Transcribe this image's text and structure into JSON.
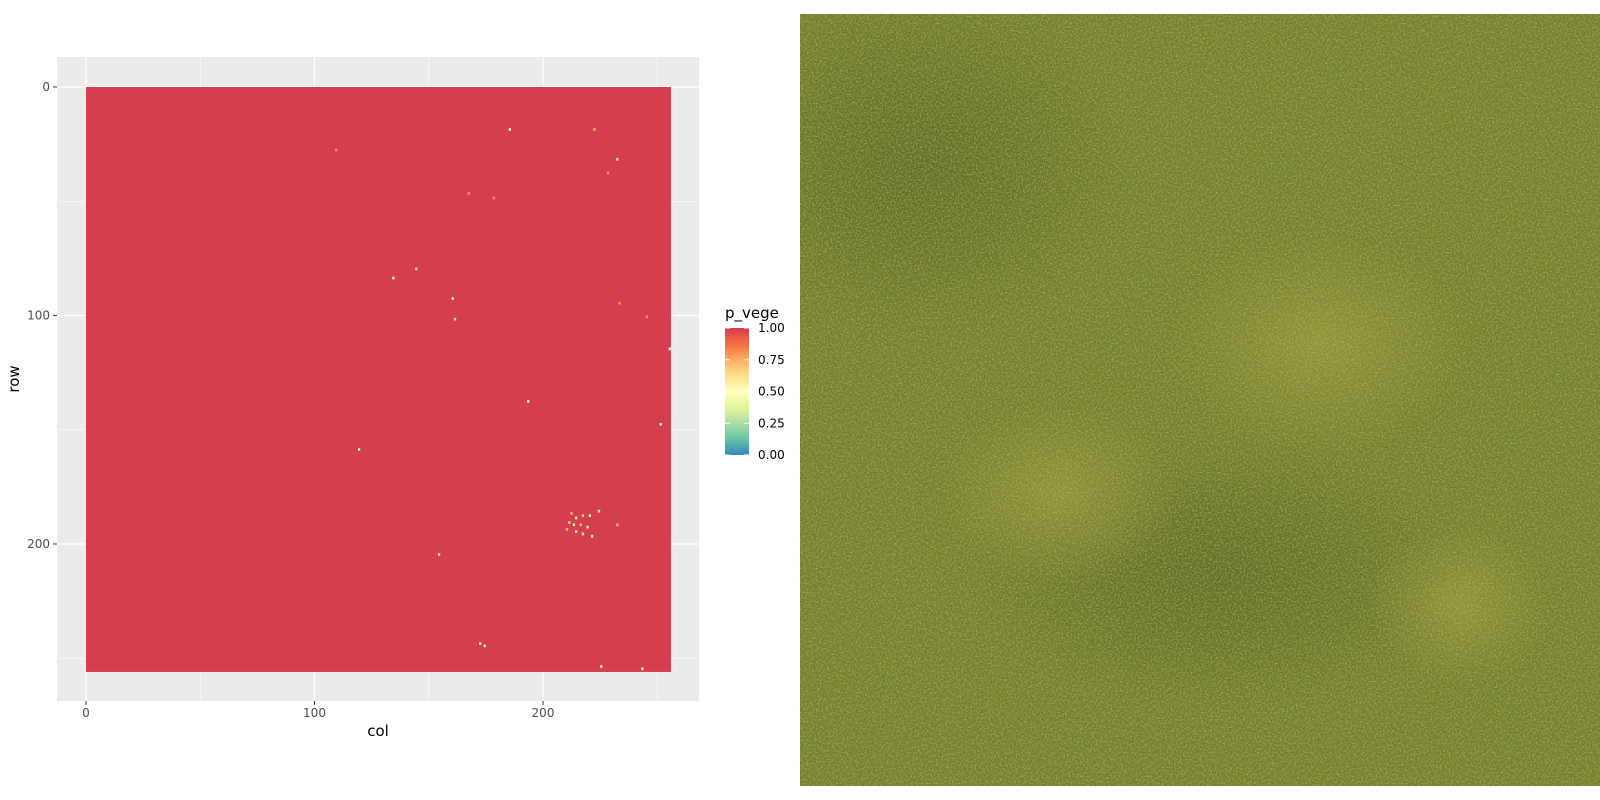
{
  "chart_data": {
    "type": "heatmap",
    "title": "",
    "xlabel": "col",
    "ylabel": "row",
    "x_ticks": [
      0,
      100,
      200
    ],
    "y_ticks": [
      0,
      100,
      200
    ],
    "xlim": [
      -12,
      269
    ],
    "ylim": [
      -12,
      269
    ],
    "y_reversed": true,
    "grid": true,
    "grid_dimensions": {
      "cols": 256,
      "rows": 256
    },
    "background_value": 1.0,
    "legend": {
      "title": "p_vege",
      "position": "right",
      "breaks": [
        "1.00",
        "0.75",
        "0.50",
        "0.25",
        "0.00"
      ]
    },
    "colors": {
      "panel_background": "#ebebeb",
      "gridline": "#ffffff",
      "scale": [
        "#3288bd",
        "#66c2a5",
        "#abdda4",
        "#e6f598",
        "#ffffbf",
        "#fee08b",
        "#fdae61",
        "#f46d43",
        "#d53e4f"
      ]
    },
    "anomalies": [
      {
        "col": 185,
        "row": 18,
        "value": 0.45
      },
      {
        "col": 222,
        "row": 18,
        "value": 0.75
      },
      {
        "col": 109,
        "row": 27,
        "value": 0.8
      },
      {
        "col": 232,
        "row": 31,
        "value": 0.6
      },
      {
        "col": 228,
        "row": 37,
        "value": 0.8
      },
      {
        "col": 167,
        "row": 46,
        "value": 0.8
      },
      {
        "col": 178,
        "row": 48,
        "value": 0.8
      },
      {
        "col": 144,
        "row": 79,
        "value": 0.3
      },
      {
        "col": 134,
        "row": 83,
        "value": 0.5
      },
      {
        "col": 160,
        "row": 92,
        "value": 0.5
      },
      {
        "col": 161,
        "row": 101,
        "value": 0.3
      },
      {
        "col": 233,
        "row": 94,
        "value": 0.8
      },
      {
        "col": 245,
        "row": 100,
        "value": 0.8
      },
      {
        "col": 255,
        "row": 114,
        "value": 0.5
      },
      {
        "col": 193,
        "row": 137,
        "value": 0.45
      },
      {
        "col": 251,
        "row": 147,
        "value": 0.45
      },
      {
        "col": 119,
        "row": 158,
        "value": 0.5
      },
      {
        "col": 212,
        "row": 186,
        "value": 0.7
      },
      {
        "col": 214,
        "row": 188,
        "value": 0.5
      },
      {
        "col": 217,
        "row": 187,
        "value": 0.6
      },
      {
        "col": 220,
        "row": 187,
        "value": 0.45
      },
      {
        "col": 224,
        "row": 185,
        "value": 0.55
      },
      {
        "col": 211,
        "row": 190,
        "value": 0.65
      },
      {
        "col": 213,
        "row": 191,
        "value": 0.4
      },
      {
        "col": 216,
        "row": 191,
        "value": 0.7
      },
      {
        "col": 219,
        "row": 192,
        "value": 0.55
      },
      {
        "col": 210,
        "row": 193,
        "value": 0.75
      },
      {
        "col": 214,
        "row": 194,
        "value": 0.6
      },
      {
        "col": 217,
        "row": 195,
        "value": 0.5
      },
      {
        "col": 221,
        "row": 196,
        "value": 0.6
      },
      {
        "col": 232,
        "row": 191,
        "value": 0.75
      },
      {
        "col": 154,
        "row": 204,
        "value": 0.55
      },
      {
        "col": 172,
        "row": 243,
        "value": 0.35
      },
      {
        "col": 174,
        "row": 244,
        "value": 0.5
      },
      {
        "col": 225,
        "row": 253,
        "value": 0.5
      },
      {
        "col": 243,
        "row": 254,
        "value": 0.5
      }
    ]
  },
  "photo": {
    "base_color": "#6e7a22",
    "dark_color": "#3e4714",
    "light_color": "#9fa83a"
  }
}
